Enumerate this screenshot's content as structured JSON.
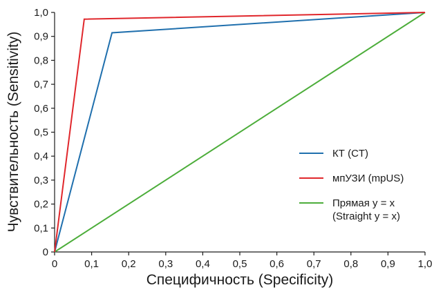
{
  "chart_data": {
    "type": "line",
    "xlabel": "Специфичность (Specificity)",
    "ylabel": "Чувствительность (Sensitivity)",
    "xlim": [
      0,
      1
    ],
    "ylim": [
      0,
      1
    ],
    "x_ticks": [
      "0",
      "0,1",
      "0,2",
      "0,3",
      "0,4",
      "0,5",
      "0,6",
      "0,7",
      "0,8",
      "0,9",
      "1,0"
    ],
    "y_ticks": [
      "0",
      "0,1",
      "0,2",
      "0,3",
      "0,4",
      "0,5",
      "0,6",
      "0,7",
      "0,8",
      "0,9",
      "1,0"
    ],
    "grid": false,
    "legend_position": "right",
    "series": [
      {
        "name": "КТ (CT)",
        "color": "#1f6fad",
        "x": [
          0,
          0.155,
          1.0
        ],
        "y": [
          0,
          0.915,
          1.0
        ]
      },
      {
        "name": "мпУЗИ (mpUS)",
        "color": "#e0262b",
        "x": [
          0,
          0.08,
          1.0
        ],
        "y": [
          0,
          0.972,
          1.0
        ]
      },
      {
        "name": "Прямая y = x",
        "name_line2": "(Straight y = x)",
        "color": "#4cad3a",
        "x": [
          0,
          1.0
        ],
        "y": [
          0,
          1.0
        ]
      }
    ]
  }
}
